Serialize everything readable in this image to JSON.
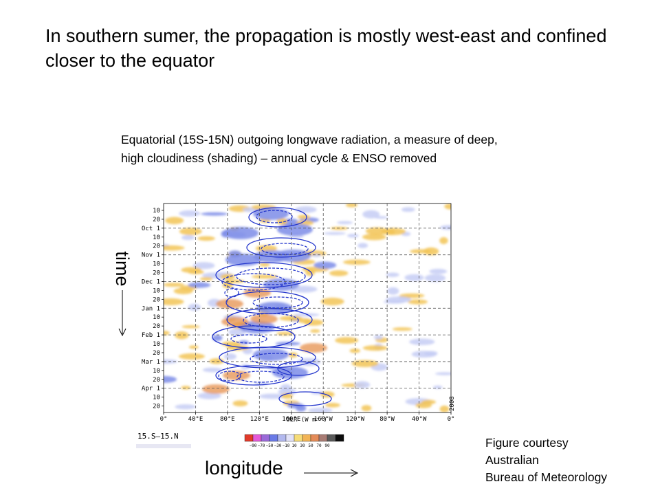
{
  "slide": {
    "title": "In southern sumer, the propagation is mostly west-east and confined closer to the equator",
    "caption": "Equatorial (15S-15N) outgoing longwave radiation, a measure of deep, high cloudiness (shading) – annual cycle & ENSO removed",
    "time_label": "time",
    "longitude_label": "longitude",
    "credit": [
      "Figure courtesy",
      "Australian",
      "Bureau of Meteorology"
    ]
  },
  "figure": {
    "y_ticks": [
      "10",
      "20",
      "Oct 1",
      "10",
      "20",
      "Nov 1",
      "10",
      "20",
      "Dec 1",
      "10",
      "20",
      "Jan 1",
      "10",
      "20",
      "Feb 1",
      "10",
      "20",
      "Mar 1",
      "10",
      "20",
      "Apr 1",
      "10",
      "20"
    ],
    "x_ticks": [
      "0°",
      "40°E",
      "80°E",
      "120°E",
      "160°E",
      "160°W",
      "120°W",
      "80°W",
      "40°W",
      "0°"
    ],
    "x_axis_label": "OLR (W m⁻²)",
    "year": "2008",
    "region": "15.S–15.N",
    "colorbar_labels": [
      "−90",
      "−70",
      "−50",
      "−30",
      "−10",
      "10",
      "30",
      "50",
      "70",
      "90"
    ],
    "colorbar_colors": [
      "#e23a2a",
      "#e45ad8",
      "#9a6ad8",
      "#6a7ae6",
      "#b2b8ee",
      "#e2e2f8",
      "#f6dc78",
      "#f2b456",
      "#e48b58",
      "#a87c74",
      "#5a5a5a",
      "#0c0c0c"
    ],
    "colors": {
      "contour": "#2436cc",
      "wet": "#7c8ce8",
      "wet_light": "#c6cdf4",
      "dry": "#f2c456",
      "dry_dark": "#e6904c",
      "grid": "#555555"
    }
  }
}
